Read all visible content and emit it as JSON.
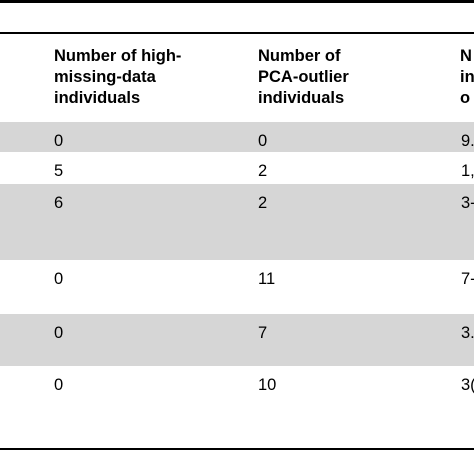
{
  "table": {
    "headers": [
      "Number of high-\nmissing-data\nindividuals",
      "Number of\nPCA-outlier\nindividuals",
      "N\nin\no"
    ],
    "rows": [
      [
        "0",
        "0",
        "9."
      ],
      [
        "5",
        "2",
        "1,"
      ],
      [
        "6",
        "2",
        "3-"
      ],
      [
        "0",
        "11",
        "7-"
      ],
      [
        "0",
        "7",
        "3."
      ],
      [
        "0",
        "10",
        "3("
      ]
    ]
  }
}
